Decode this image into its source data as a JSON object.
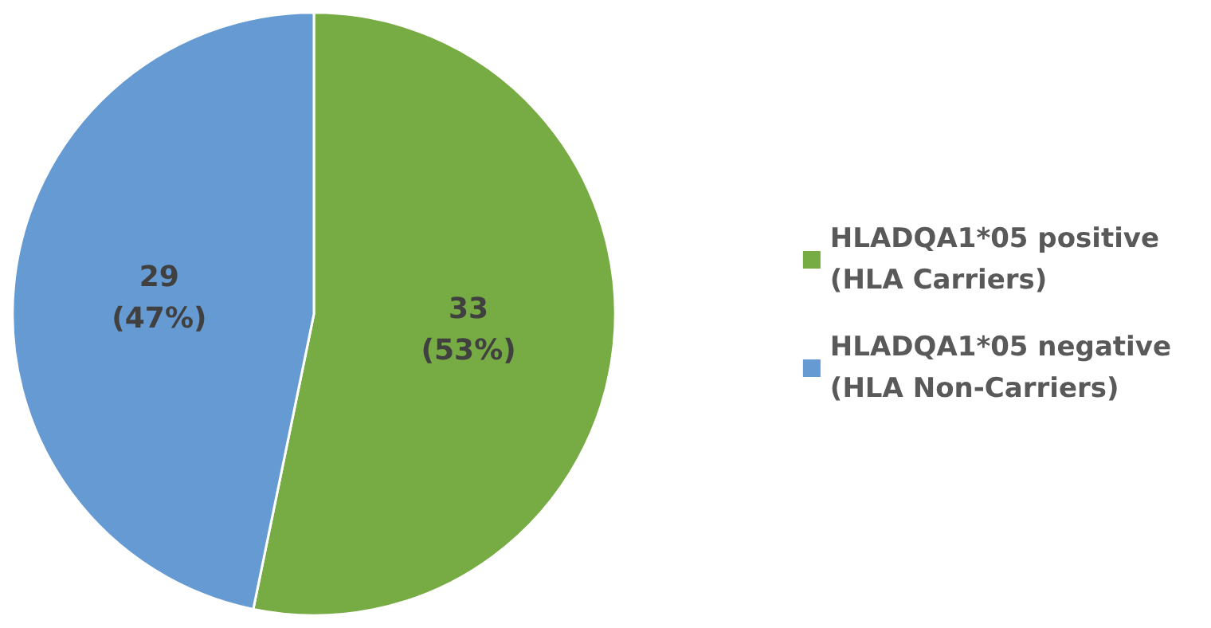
{
  "chart_data": {
    "type": "pie",
    "categories": [
      "HLADQA1*05 positive (HLA Carriers)",
      "HLADQA1*05 negative (HLA Non-Carriers)"
    ],
    "values": [
      33,
      29
    ],
    "colors": [
      "#77ab43",
      "#659ad2"
    ],
    "value_labels": [
      "33 (53%)",
      "29 (47%)"
    ],
    "legend": "right"
  }
}
